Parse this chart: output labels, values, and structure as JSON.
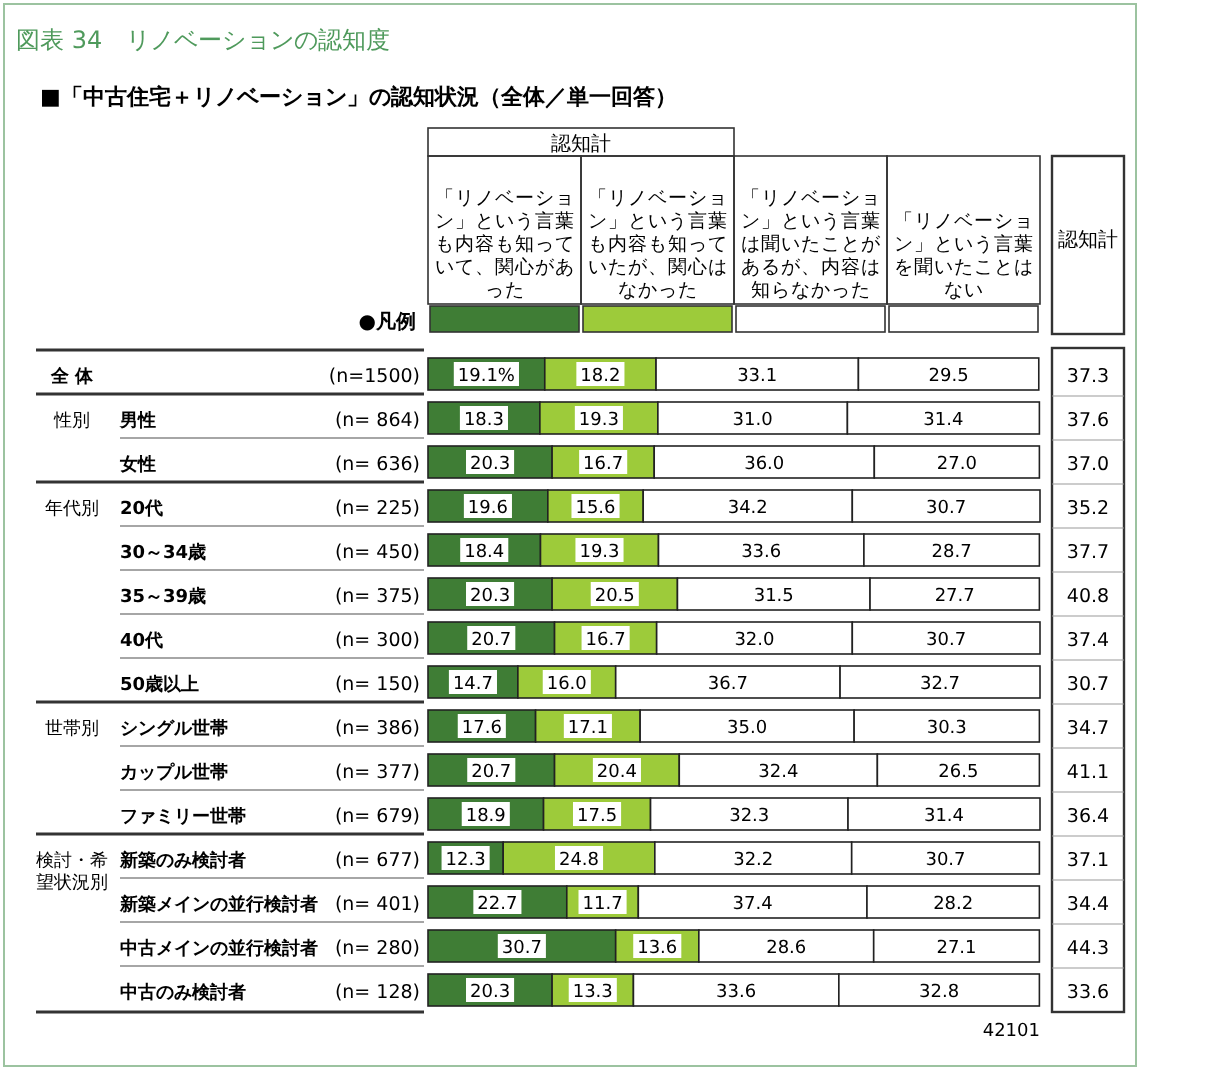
{
  "chart_data": [
    {
      "type": "bar",
      "orientation": "horizontal",
      "stacked": true,
      "title": "図表 34　リノベーションの認知度",
      "subtitle": "■「中古住宅＋リノベーション」の認知状況（全体／単一回答）",
      "legend": "top",
      "legend_title": "●凡例",
      "categories": [
        null,
        "男性",
        "女性",
        "20代",
        "30～34歳",
        "35～39歳",
        "40代",
        "50歳以上",
        "シングル世帯",
        "カップル世帯",
        "ファミリー世帯",
        "新築のみ検討者",
        "新築メインの並行検討者",
        "中古メインの並行検討者",
        "中古のみ検討者"
      ],
      "series": [
        {
          "name": "「リノベーション」という言葉も内容も知っていて、関心があった",
          "color": "#3f7d35",
          "values": [
            19.1,
            18.3,
            20.3,
            19.6,
            18.4,
            20.3,
            20.7,
            14.7,
            17.6,
            20.7,
            18.9,
            12.3,
            22.7,
            30.7,
            20.3
          ],
          "value_labels": [
            "19.1%",
            "18.3",
            "20.3",
            "19.6",
            "18.4",
            "20.3",
            "20.7",
            "14.7",
            "17.6",
            "20.7",
            "18.9",
            "12.3",
            "22.7",
            "30.7",
            "20.3"
          ]
        },
        {
          "name": "「リノベーション」という言葉も内容も知っていたが、関心はなかった",
          "color": "#9dcb3a",
          "values": [
            18.2,
            19.3,
            16.7,
            15.6,
            19.3,
            20.5,
            16.7,
            16.0,
            17.1,
            20.4,
            17.5,
            24.8,
            11.7,
            13.6,
            13.3
          ],
          "value_labels": [
            "18.2",
            "19.3",
            "16.7",
            "15.6",
            "19.3",
            "20.5",
            "16.7",
            "16.0",
            "17.1",
            "20.4",
            "17.5",
            "24.8",
            "11.7",
            "13.6",
            "13.3"
          ]
        },
        {
          "name": "「リノベーション」という言葉は聞いたことがあるが、内容は知らなかった",
          "color": "#ffffff",
          "values": [
            33.1,
            31.0,
            36.0,
            34.2,
            33.6,
            31.5,
            32.0,
            36.7,
            35.0,
            32.4,
            32.3,
            32.2,
            37.4,
            28.6,
            33.6
          ],
          "value_labels": [
            "33.1",
            "31.0",
            "36.0",
            "34.2",
            "33.6",
            "31.5",
            "32.0",
            "36.7",
            "35.0",
            "32.4",
            "32.3",
            "32.2",
            "37.4",
            "28.6",
            "33.6"
          ]
        },
        {
          "name": "「リノベーション」という言葉を聞いたことはない",
          "color": "#ffffff",
          "values": [
            29.5,
            31.4,
            27.0,
            30.7,
            28.7,
            27.7,
            30.7,
            32.7,
            30.3,
            26.5,
            31.4,
            30.7,
            28.2,
            27.1,
            32.8
          ],
          "value_labels": [
            "29.5",
            "31.4",
            "27.0",
            "30.7",
            "28.7",
            "27.7",
            "30.7",
            "32.7",
            "30.3",
            "26.5",
            "31.4",
            "30.7",
            "28.2",
            "27.1",
            "32.8"
          ]
        }
      ],
      "annotations": [
        "認知計",
        "42101",
        "(n=1500)",
        "(n= 864)",
        "(n= 636)",
        "(n= 225)",
        "(n= 450)",
        "(n= 375)",
        "(n= 300)",
        "(n= 150)",
        "(n= 386)",
        "(n= 377)",
        "(n= 679)",
        "(n= 677)",
        "(n= 401)",
        "(n= 280)",
        "(n= 128)",
        "全 体",
        "性別",
        "年代別",
        "世帯別",
        "検討・希望状況別"
      ]
    },
    {
      "type": "other",
      "title": "認知計",
      "annotations": [
        "37.3",
        "37.6",
        "37.0",
        "35.2",
        "37.7",
        "40.8",
        "37.4",
        "30.7",
        "34.7",
        "41.1",
        "36.4",
        "37.1",
        "34.4",
        "44.3",
        "33.6"
      ]
    }
  ]
}
